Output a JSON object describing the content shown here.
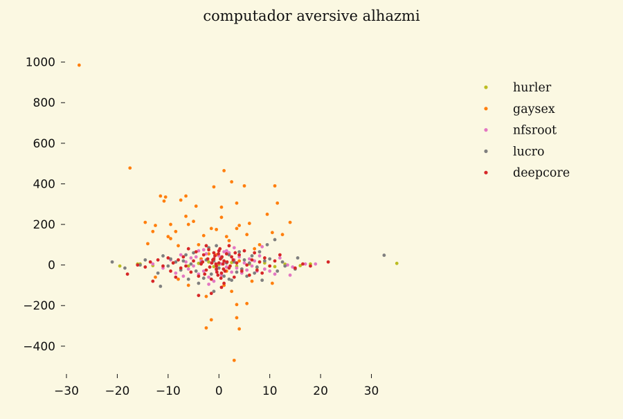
{
  "chart_data": {
    "type": "scatter",
    "title": "computador aversive alhazmi",
    "xlabel": "",
    "ylabel": "",
    "xlim": [
      -30,
      43
    ],
    "ylim": [
      -520,
      1050
    ],
    "xticks": [
      -30,
      -20,
      -10,
      0,
      10,
      20,
      30
    ],
    "yticks": [
      -400,
      -200,
      0,
      200,
      400,
      600,
      800,
      1000
    ],
    "xtick_labels": [
      "−30",
      "−20",
      "−10",
      "0",
      "10",
      "20",
      "30"
    ],
    "ytick_labels": [
      "−400",
      "−200",
      "0",
      "200",
      "400",
      "600",
      "800",
      "1000"
    ],
    "grid": false,
    "legend_position": "top-right",
    "series": [
      {
        "name": "hurler",
        "color": "#bcbd22",
        "points": [
          [
            -19.5,
            -5
          ],
          [
            -16,
            5
          ],
          [
            -15.5,
            5
          ],
          [
            -13,
            -3
          ],
          [
            -9,
            10
          ],
          [
            -6,
            -5
          ],
          [
            -4,
            8
          ],
          [
            -2,
            15
          ],
          [
            -1,
            -8
          ],
          [
            0,
            3
          ],
          [
            1.5,
            -10
          ],
          [
            2.5,
            12
          ],
          [
            3.5,
            -6
          ],
          [
            4.5,
            -20
          ],
          [
            6,
            5
          ],
          [
            7.5,
            -12
          ],
          [
            9,
            10
          ],
          [
            11,
            -8
          ],
          [
            13,
            4
          ],
          [
            16,
            -3
          ],
          [
            18,
            5
          ],
          [
            35,
            8
          ]
        ]
      },
      {
        "name": "gaysex",
        "color": "#ff7f0e",
        "points": [
          [
            -27.5,
            985
          ],
          [
            -17.5,
            478
          ],
          [
            -14.5,
            210
          ],
          [
            -14,
            105
          ],
          [
            -13,
            165
          ],
          [
            -12.5,
            195
          ],
          [
            -11.5,
            340
          ],
          [
            -10.8,
            315
          ],
          [
            -10.5,
            335
          ],
          [
            -10,
            140
          ],
          [
            -9.5,
            130
          ],
          [
            -9.5,
            200
          ],
          [
            -8.5,
            165
          ],
          [
            -8,
            95
          ],
          [
            -7.5,
            320
          ],
          [
            -6.5,
            340
          ],
          [
            -6.5,
            240
          ],
          [
            -6,
            200
          ],
          [
            -5,
            215
          ],
          [
            -4.5,
            290
          ],
          [
            -4,
            100
          ],
          [
            -3,
            145
          ],
          [
            -2,
            55
          ],
          [
            -1.5,
            180
          ],
          [
            -1,
            385
          ],
          [
            -0.5,
            175
          ],
          [
            0.5,
            285
          ],
          [
            0.5,
            235
          ],
          [
            1,
            465
          ],
          [
            1.5,
            140
          ],
          [
            2,
            120
          ],
          [
            2.5,
            410
          ],
          [
            3.5,
            305
          ],
          [
            3.5,
            180
          ],
          [
            4,
            195
          ],
          [
            5,
            390
          ],
          [
            5.5,
            150
          ],
          [
            6,
            205
          ],
          [
            7,
            80
          ],
          [
            8,
            100
          ],
          [
            9.5,
            250
          ],
          [
            10.5,
            160
          ],
          [
            11,
            390
          ],
          [
            11.5,
            305
          ],
          [
            12.5,
            150
          ],
          [
            14,
            210
          ],
          [
            -2.5,
            -310
          ],
          [
            -1.5,
            -270
          ],
          [
            3.5,
            -260
          ],
          [
            4,
            -315
          ],
          [
            3.5,
            -195
          ],
          [
            5.5,
            -190
          ],
          [
            3,
            -470
          ],
          [
            2.5,
            -130
          ],
          [
            1,
            -100
          ],
          [
            -2.5,
            -155
          ],
          [
            -6,
            -100
          ],
          [
            -8,
            -70
          ],
          [
            6.5,
            -80
          ],
          [
            10.5,
            -90
          ],
          [
            -12.5,
            -60
          ],
          [
            -0.5,
            50
          ],
          [
            1.5,
            -30
          ],
          [
            -3.5,
            30
          ],
          [
            4,
            20
          ]
        ]
      },
      {
        "name": "nfsroot",
        "color": "#e377c2",
        "points": [
          [
            -13,
            5
          ],
          [
            -11,
            -15
          ],
          [
            -9.5,
            25
          ],
          [
            -8.5,
            -40
          ],
          [
            -7.5,
            50
          ],
          [
            -7,
            -55
          ],
          [
            -6.5,
            15
          ],
          [
            -6,
            -20
          ],
          [
            -5.5,
            35
          ],
          [
            -5,
            -5
          ],
          [
            -4.5,
            40
          ],
          [
            -4,
            -45
          ],
          [
            -3.5,
            20
          ],
          [
            -3,
            -30
          ],
          [
            -2.5,
            55
          ],
          [
            -2,
            -60
          ],
          [
            -1.5,
            10
          ],
          [
            -1,
            30
          ],
          [
            -0.5,
            -25
          ],
          [
            0,
            45
          ],
          [
            0.5,
            -50
          ],
          [
            1,
            15
          ],
          [
            1.5,
            -10
          ],
          [
            2,
            60
          ],
          [
            2.5,
            -35
          ],
          [
            3,
            25
          ],
          [
            3.5,
            -15
          ],
          [
            4,
            40
          ],
          [
            4.5,
            -40
          ],
          [
            5,
            10
          ],
          [
            5.5,
            -25
          ],
          [
            6,
            30
          ],
          [
            6.5,
            -5
          ],
          [
            7,
            20
          ],
          [
            7.5,
            -30
          ],
          [
            8,
            45
          ],
          [
            8.5,
            90
          ],
          [
            9,
            -20
          ],
          [
            10,
            -30
          ],
          [
            11,
            -45
          ],
          [
            12,
            35
          ],
          [
            13.5,
            0
          ],
          [
            14,
            -50
          ],
          [
            14.5,
            -10
          ],
          [
            17,
            5
          ],
          [
            19,
            5
          ],
          [
            1,
            65
          ],
          [
            -1,
            -80
          ],
          [
            3,
            85
          ],
          [
            -4,
            70
          ],
          [
            2,
            95
          ],
          [
            -2,
            -95
          ],
          [
            0.5,
            5
          ],
          [
            1.5,
            70
          ],
          [
            -3,
            75
          ]
        ]
      },
      {
        "name": "lucro",
        "color": "#7f7f7f",
        "points": [
          [
            -21,
            15
          ],
          [
            -18.5,
            -15
          ],
          [
            -15.5,
            0
          ],
          [
            -14.5,
            25
          ],
          [
            -12,
            -40
          ],
          [
            -11.5,
            -105
          ],
          [
            -11,
            45
          ],
          [
            -10,
            -5
          ],
          [
            -9.5,
            30
          ],
          [
            -8.5,
            15
          ],
          [
            -7.5,
            -25
          ],
          [
            -7,
            20
          ],
          [
            -6.5,
            50
          ],
          [
            -6,
            -70
          ],
          [
            -5.5,
            5
          ],
          [
            -5,
            60
          ],
          [
            -4.5,
            -30
          ],
          [
            -3.5,
            10
          ],
          [
            -3,
            -65
          ],
          [
            -2.5,
            25
          ],
          [
            -2,
            85
          ],
          [
            -1.5,
            -45
          ],
          [
            -1,
            20
          ],
          [
            -0.5,
            95
          ],
          [
            0,
            -15
          ],
          [
            0.5,
            35
          ],
          [
            1,
            -55
          ],
          [
            1.5,
            10
          ],
          [
            2,
            50
          ],
          [
            2.5,
            -75
          ],
          [
            3,
            15
          ],
          [
            3.5,
            -35
          ],
          [
            4,
            65
          ],
          [
            4.5,
            -20
          ],
          [
            5,
            25
          ],
          [
            5.5,
            -55
          ],
          [
            6,
            10
          ],
          [
            6.5,
            45
          ],
          [
            7,
            -40
          ],
          [
            7.5,
            -10
          ],
          [
            8,
            65
          ],
          [
            8.5,
            -75
          ],
          [
            9,
            20
          ],
          [
            9.5,
            100
          ],
          [
            10,
            30
          ],
          [
            11,
            125
          ],
          [
            11.5,
            -30
          ],
          [
            12.5,
            15
          ],
          [
            13,
            -5
          ],
          [
            15.5,
            35
          ],
          [
            15,
            -20
          ],
          [
            32.5,
            48
          ],
          [
            -1,
            -130
          ],
          [
            2,
            -70
          ],
          [
            -4,
            -90
          ]
        ]
      },
      {
        "name": "deepcore",
        "color": "#d62728",
        "points": [
          [
            -18,
            -45
          ],
          [
            -16,
            0
          ],
          [
            -14.5,
            -10
          ],
          [
            -13.5,
            15
          ],
          [
            -13,
            -80
          ],
          [
            -12,
            25
          ],
          [
            -11,
            -5
          ],
          [
            -10,
            35
          ],
          [
            -9.5,
            -30
          ],
          [
            -9,
            10
          ],
          [
            -8.5,
            -60
          ],
          [
            -8,
            25
          ],
          [
            -7.5,
            -15
          ],
          [
            -7,
            40
          ],
          [
            -6.5,
            -5
          ],
          [
            -6,
            80
          ],
          [
            -5.5,
            -35
          ],
          [
            -5,
            20
          ],
          [
            -4.5,
            65
          ],
          [
            -4,
            -55
          ],
          [
            -3.5,
            5
          ],
          [
            -3,
            50
          ],
          [
            -2.5,
            -25
          ],
          [
            -2,
            75
          ],
          [
            -1.5,
            -70
          ],
          [
            -1,
            30
          ],
          [
            -0.5,
            -5
          ],
          [
            0,
            70
          ],
          [
            0.5,
            -40
          ],
          [
            1,
            20
          ],
          [
            1.5,
            55
          ],
          [
            2,
            -15
          ],
          [
            2.5,
            40
          ],
          [
            3,
            -60
          ],
          [
            3.5,
            10
          ],
          [
            4,
            50
          ],
          [
            4.5,
            -30
          ],
          [
            5,
            70
          ],
          [
            5.5,
            0
          ],
          [
            6,
            -50
          ],
          [
            6.5,
            25
          ],
          [
            7,
            60
          ],
          [
            7.5,
            -25
          ],
          [
            8,
            15
          ],
          [
            8.5,
            -40
          ],
          [
            9,
            35
          ],
          [
            10,
            -5
          ],
          [
            11,
            20
          ],
          [
            12,
            50
          ],
          [
            15,
            -15
          ],
          [
            16.5,
            5
          ],
          [
            18,
            -5
          ],
          [
            21.5,
            15
          ],
          [
            -4,
            -150
          ],
          [
            -1.5,
            -140
          ],
          [
            0.5,
            -110
          ],
          [
            2,
            95
          ],
          [
            -2.5,
            95
          ],
          [
            1,
            -90
          ],
          [
            -1,
            60
          ],
          [
            0,
            10
          ],
          [
            -0.5,
            -20
          ],
          [
            0.3,
            30
          ],
          [
            -0.2,
            -50
          ],
          [
            0.8,
            5
          ],
          [
            -1.2,
            25
          ],
          [
            1.2,
            -30
          ],
          [
            -0.8,
            45
          ],
          [
            0.4,
            -65
          ],
          [
            -0.6,
            5
          ],
          [
            0.2,
            80
          ],
          [
            -0.4,
            -35
          ],
          [
            1.6,
            15
          ],
          [
            -1.8,
            -10
          ],
          [
            2.2,
            -5
          ],
          [
            -2.2,
            30
          ],
          [
            2.8,
            25
          ],
          [
            -2.8,
            -45
          ],
          [
            3.2,
            60
          ],
          [
            -3.2,
            15
          ],
          [
            0.6,
            40
          ],
          [
            -0.1,
            55
          ],
          [
            0.9,
            -20
          ],
          [
            -1.4,
            10
          ]
        ]
      }
    ]
  }
}
